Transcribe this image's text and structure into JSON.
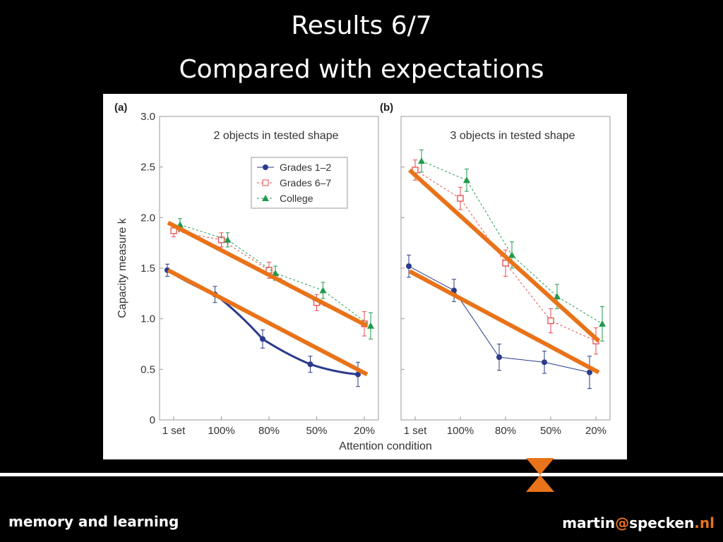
{
  "slide": {
    "title_line1": "Results 6/7",
    "title_line2": "Compared with expectations",
    "footer_left": "memory and learning",
    "footer_email_user": "martin",
    "footer_email_at": "@",
    "footer_email_domain": "specken",
    "footer_email_tld": ".nl",
    "accent_color": "#e8731a"
  },
  "chart_data": [
    {
      "type": "line",
      "panel_label": "(a)",
      "title": "2 objects in tested shape",
      "ylabel": "Capacity measure k",
      "xlabel": "Attention condition",
      "categories": [
        "1 set",
        "100%",
        "80%",
        "50%",
        "20%"
      ],
      "ylim": [
        0,
        3.0
      ],
      "yticks": [
        "0",
        "0.5",
        "1.0",
        "1.5",
        "2.0",
        "2.5",
        "3.0"
      ],
      "legend_position": "top-right",
      "series": [
        {
          "name": "Grades 1–2",
          "marker": "circle",
          "color": "#2a3a8c",
          "values": [
            1.48,
            1.24,
            0.8,
            0.55,
            0.45
          ],
          "errors": [
            0.06,
            0.08,
            0.09,
            0.08,
            0.12
          ]
        },
        {
          "name": "Grades 6–7",
          "marker": "square",
          "color": "#e84a4a",
          "values": [
            1.87,
            1.78,
            1.48,
            1.16,
            0.95
          ],
          "errors": [
            0.06,
            0.07,
            0.08,
            0.08,
            0.12
          ]
        },
        {
          "name": "College",
          "marker": "triangle",
          "color": "#1f9a4a",
          "values": [
            1.93,
            1.78,
            1.45,
            1.28,
            0.93
          ],
          "errors": [
            0.06,
            0.07,
            0.07,
            0.08,
            0.13
          ]
        }
      ],
      "overlay_lines": [
        {
          "color": "#e8731a",
          "from": [
            1,
            1.95
          ],
          "to": [
            5,
            0.93
          ]
        },
        {
          "color": "#e8731a",
          "from": [
            1,
            1.48
          ],
          "to": [
            5,
            0.45
          ]
        }
      ]
    },
    {
      "type": "line",
      "panel_label": "(b)",
      "title": "3 objects in tested shape",
      "ylabel": "",
      "xlabel": "",
      "categories": [
        "1 set",
        "100%",
        "80%",
        "50%",
        "20%"
      ],
      "ylim": [
        0,
        3.0
      ],
      "series": [
        {
          "name": "Grades 1–2",
          "marker": "circle",
          "color": "#2a3a8c",
          "values": [
            1.52,
            1.28,
            0.62,
            0.57,
            0.47
          ],
          "errors": [
            0.11,
            0.11,
            0.13,
            0.11,
            0.16
          ]
        },
        {
          "name": "Grades 6–7",
          "marker": "square",
          "color": "#e84a4a",
          "values": [
            2.47,
            2.19,
            1.55,
            0.98,
            0.78
          ],
          "errors": [
            0.1,
            0.11,
            0.13,
            0.12,
            0.13
          ]
        },
        {
          "name": "College",
          "marker": "triangle",
          "color": "#1f9a4a",
          "values": [
            2.56,
            2.37,
            1.63,
            1.22,
            0.95
          ],
          "errors": [
            0.11,
            0.11,
            0.13,
            0.12,
            0.17
          ]
        }
      ],
      "overlay_lines": [
        {
          "color": "#e8731a",
          "from": [
            1,
            2.47
          ],
          "to": [
            5,
            0.78
          ]
        },
        {
          "color": "#e8731a",
          "from": [
            1,
            1.47
          ],
          "to": [
            5,
            0.47
          ]
        }
      ]
    }
  ]
}
